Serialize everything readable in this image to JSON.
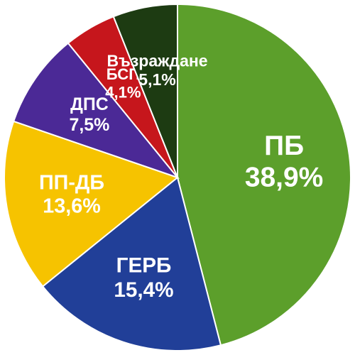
{
  "chart_data": {
    "type": "pie",
    "categories": [
      "ПБ",
      "ГЕРБ",
      "ПП-ДБ",
      "ДПС",
      "БСП",
      "Възраждане"
    ],
    "values": [
      38.9,
      15.4,
      13.6,
      7.5,
      4.1,
      5.1
    ],
    "value_labels": [
      "38,9%",
      "15,4%",
      "13,6%",
      "7,5%",
      "4,1%",
      "5,1%"
    ],
    "colors": [
      "#5c9f2b",
      "#213f98",
      "#f6c300",
      "#4b2996",
      "#c6161c",
      "#1d3b12"
    ]
  }
}
